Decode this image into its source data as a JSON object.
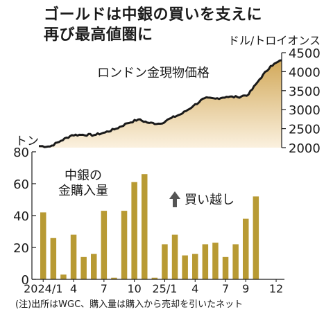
{
  "title_lines": [
    "ゴールドは中銀の買いを支えに",
    "再び最高値圏に"
  ],
  "note": "(注)出所はWGC、購入量は購入から売却を引いたネット",
  "colors": {
    "bar": "#b89a33",
    "area_top": "#d2a95a",
    "area_bottom": "#fbf1df",
    "line": "#1a1a1a"
  },
  "chart_data": [
    {
      "type": "area",
      "title": "ロンドン金現物価格",
      "unit_label": "ドル/トロイオンス",
      "ylim": [
        2000,
        4500
      ],
      "y_ticks": [
        "4500",
        "4000",
        "3500",
        "3000",
        "2500",
        "2000"
      ],
      "x_range": [
        "2024-01",
        "2025-11"
      ],
      "series": [
        {
          "x": [
            "2024-01",
            "2024-02",
            "2024-03",
            "2024-04",
            "2024-05",
            "2024-06",
            "2024-07",
            "2024-08",
            "2024-09",
            "2024-10",
            "2024-11",
            "2024-12",
            "2025-01",
            "2025-02",
            "2025-03",
            "2025-04",
            "2025-05",
            "2025-06",
            "2025-07",
            "2025-08",
            "2025-09",
            "2025-10",
            "2025-11"
          ],
          "values": [
            2040,
            2030,
            2180,
            2330,
            2340,
            2330,
            2400,
            2500,
            2640,
            2740,
            2650,
            2630,
            2780,
            2900,
            3100,
            3300,
            3290,
            3340,
            3330,
            3400,
            3800,
            4150,
            4300
          ]
        }
      ]
    },
    {
      "type": "bar",
      "title": "中銀の\n金購入量",
      "title_lines": [
        "中銀の",
        "金購入量"
      ],
      "unit_label": "トン",
      "ylim": [
        0,
        80
      ],
      "y_ticks": [
        "80",
        "60",
        "40",
        "20",
        "0"
      ],
      "annotation": "買い越し",
      "x_tick_labels": [
        {
          "label": "2024/1",
          "index": 0
        },
        {
          "label": "4",
          "index": 3
        },
        {
          "label": "7",
          "index": 6
        },
        {
          "label": "10",
          "index": 9
        },
        {
          "label": "25/1",
          "index": 12
        },
        {
          "label": "4",
          "index": 15
        },
        {
          "label": "7",
          "index": 18
        },
        {
          "label": "9",
          "index": 20
        },
        {
          "label": "12",
          "index": 23
        }
      ],
      "categories": [
        "2024/1",
        "2024/2",
        "2024/3",
        "2024/4",
        "2024/5",
        "2024/6",
        "2024/7",
        "2024/8",
        "2024/9",
        "2024/10",
        "2024/11",
        "2024/12",
        "2025/1",
        "2025/2",
        "2025/3",
        "2025/4",
        "2025/5",
        "2025/6",
        "2025/7",
        "2025/8",
        "2025/9",
        "2025/10",
        "2025/11",
        "2025/12"
      ],
      "values": [
        42,
        26,
        3,
        28,
        14,
        16,
        43,
        1,
        43,
        61,
        66,
        1,
        22,
        28,
        15,
        16,
        22,
        23,
        14,
        22,
        38,
        52,
        null,
        null
      ]
    }
  ]
}
